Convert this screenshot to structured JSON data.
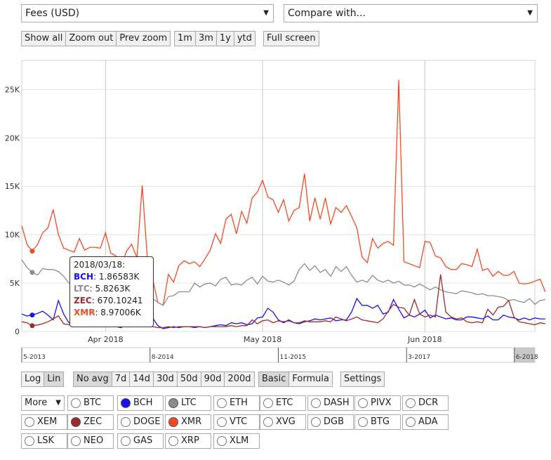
{
  "metric_select": {
    "value": "Fees (USD)"
  },
  "compare_select": {
    "value": "Compare with..."
  },
  "zoom_buttons": [
    "Show all",
    "Zoom out",
    "Prev zoom"
  ],
  "range_buttons": [
    "1m",
    "3m",
    "1y",
    "ytd"
  ],
  "fullscreen_label": "Full screen",
  "scale_buttons": [
    {
      "label": "Log",
      "active": false
    },
    {
      "label": "Lin",
      "active": true
    }
  ],
  "avg_buttons": [
    {
      "label": "No avg",
      "active": true
    },
    {
      "label": "7d",
      "active": false
    },
    {
      "label": "14d",
      "active": false
    },
    {
      "label": "30d",
      "active": false
    },
    {
      "label": "50d",
      "active": false
    },
    {
      "label": "90d",
      "active": false
    },
    {
      "label": "200d",
      "active": false
    }
  ],
  "mode_buttons": [
    {
      "label": "Basic",
      "active": true
    },
    {
      "label": "Formula",
      "active": false
    }
  ],
  "settings_label": "Settings",
  "more_label": "More",
  "coins": [
    {
      "label": "BTC",
      "checked": false,
      "color": ""
    },
    {
      "label": "BCH",
      "checked": true,
      "color": "#1a0ff2"
    },
    {
      "label": "LTC",
      "checked": true,
      "color": "#8c8c8c"
    },
    {
      "label": "ETH",
      "checked": false,
      "color": ""
    },
    {
      "label": "ETC",
      "checked": false,
      "color": ""
    },
    {
      "label": "DASH",
      "checked": false,
      "color": ""
    },
    {
      "label": "PIVX",
      "checked": false,
      "color": ""
    },
    {
      "label": "DCR",
      "checked": false,
      "color": ""
    },
    {
      "label": "XEM",
      "checked": false,
      "color": ""
    },
    {
      "label": "ZEC",
      "checked": true,
      "color": "#9e2a2a"
    },
    {
      "label": "DOGE",
      "checked": false,
      "color": ""
    },
    {
      "label": "XMR",
      "checked": true,
      "color": "#f04a24"
    },
    {
      "label": "VTC",
      "checked": false,
      "color": ""
    },
    {
      "label": "XVG",
      "checked": false,
      "color": ""
    },
    {
      "label": "DGB",
      "checked": false,
      "color": ""
    },
    {
      "label": "BTG",
      "checked": false,
      "color": ""
    },
    {
      "label": "ADA",
      "checked": false,
      "color": ""
    },
    {
      "label": "LSK",
      "checked": false,
      "color": ""
    },
    {
      "label": "NEO",
      "checked": false,
      "color": ""
    },
    {
      "label": "GAS",
      "checked": false,
      "color": ""
    },
    {
      "label": "XRP",
      "checked": false,
      "color": ""
    },
    {
      "label": "XLM",
      "checked": false,
      "color": ""
    }
  ],
  "tooltip": {
    "date": "2018/03/18:",
    "rows": [
      {
        "label": "BCH",
        "value": "1.86583K",
        "color": "#1a0ff2"
      },
      {
        "label": "LTC",
        "value": "5.8263K",
        "color": "#8c8c8c"
      },
      {
        "label": "ZEC",
        "value": "670.10241",
        "color": "#9e2a2a"
      },
      {
        "label": "XMR",
        "value": "8.97006K",
        "color": "#f04a24"
      }
    ]
  },
  "chart_data": {
    "type": "line",
    "title": "",
    "xlabel": "",
    "ylabel": "",
    "x_start": "2018-03-16",
    "x_end": "2018-06-22",
    "ylim": [
      0,
      28000
    ],
    "y_ticks": [
      {
        "value": 0,
        "label": "0"
      },
      {
        "value": 5000,
        "label": "5K"
      },
      {
        "value": 10000,
        "label": "10K"
      },
      {
        "value": 15000,
        "label": "15K"
      },
      {
        "value": 20000,
        "label": "20K"
      },
      {
        "value": 25000,
        "label": "25K"
      }
    ],
    "x_ticks": [
      {
        "date": "2018-04-01",
        "label": "Apr 2018"
      },
      {
        "date": "2018-05-01",
        "label": "May 2018"
      },
      {
        "date": "2018-06-01",
        "label": "Jun 2018"
      }
    ],
    "grid": true,
    "hover_date": "2018-03-18",
    "navigator_labels": [
      {
        "pos": 0.0,
        "label": "5-2013"
      },
      {
        "pos": 0.25,
        "label": "8-2014"
      },
      {
        "pos": 0.5,
        "label": "11-2015"
      },
      {
        "pos": 0.75,
        "label": "3-2017"
      },
      {
        "pos": 0.96,
        "label": "6-2018"
      }
    ],
    "series": [
      {
        "name": "XMR",
        "color": "#f04a24",
        "values": [
          10900,
          9000,
          8300,
          8970,
          10200,
          10700,
          12600,
          10000,
          8600,
          8400,
          8200,
          9600,
          8400,
          8700,
          8700,
          8600,
          10200,
          8100,
          7800,
          6700,
          8300,
          9000,
          7600,
          15100,
          7500,
          5400,
          3000,
          2700,
          5900,
          5100,
          6800,
          7300,
          7000,
          7200,
          6700,
          7500,
          8400,
          10100,
          9100,
          11600,
          12100,
          10100,
          12400,
          11200,
          13800,
          14400,
          15600,
          13900,
          13600,
          12300,
          13600,
          11400,
          12500,
          12800,
          16300,
          11400,
          13800,
          11600,
          13800,
          11100,
          12800,
          12300,
          13000,
          11900,
          10700,
          7700,
          7100,
          9600,
          8600,
          9100,
          9300,
          8900,
          26000,
          7200,
          7000,
          6800,
          6600,
          9300,
          9200,
          7800,
          7600,
          6700,
          6400,
          6400,
          7000,
          6900,
          6700,
          8500,
          6300,
          6500,
          5700,
          6200,
          5800,
          5800,
          6200,
          5000,
          4900,
          5000,
          5200,
          5400,
          4100
        ]
      },
      {
        "name": "LTC",
        "color": "#8c8c8c",
        "values": [
          7400,
          6600,
          6100,
          5830,
          6500,
          6400,
          6400,
          6200,
          5700,
          5000,
          5100,
          4600,
          4900,
          4600,
          4600,
          4800,
          4900,
          4400,
          4300,
          4100,
          4400,
          4600,
          4000,
          4200,
          3900,
          3400,
          3000,
          2700,
          3600,
          3700,
          4100,
          4100,
          4100,
          5000,
          4600,
          4900,
          5000,
          4700,
          5400,
          5600,
          4800,
          4900,
          4800,
          5300,
          5600,
          4900,
          5700,
          5200,
          5100,
          5300,
          5100,
          4800,
          5200,
          6400,
          7000,
          6300,
          6800,
          6100,
          6400,
          5700,
          6700,
          6200,
          6700,
          5800,
          5100,
          5300,
          5100,
          5800,
          5300,
          5100,
          5300,
          5000,
          5200,
          4800,
          4800,
          4600,
          4900,
          4600,
          4300,
          4600,
          4300,
          4100,
          4000,
          3900,
          4200,
          4100,
          4000,
          3800,
          3900,
          3700,
          3700,
          3600,
          3500,
          3200,
          3300,
          3100,
          3000,
          3400,
          2800,
          3200,
          3300
        ]
      },
      {
        "name": "BCH",
        "color": "#1a0ff2",
        "values": [
          1800,
          1600,
          1700,
          1870,
          2100,
          1700,
          1200,
          3200,
          1800,
          900,
          700,
          800,
          700,
          600,
          700,
          500,
          600,
          700,
          500,
          400,
          900,
          700,
          600,
          500,
          700,
          1400,
          600,
          300,
          400,
          500,
          400,
          500,
          500,
          400,
          500,
          400,
          500,
          600,
          700,
          600,
          900,
          800,
          900,
          700,
          800,
          1400,
          1500,
          2400,
          2000,
          1200,
          900,
          1200,
          900,
          800,
          1000,
          1100,
          1300,
          1200,
          1300,
          1400,
          1100,
          1200,
          1200,
          2000,
          3400,
          2700,
          2700,
          2400,
          2700,
          1800,
          2000,
          3300,
          2300,
          1400,
          1700,
          1500,
          1800,
          2200,
          1400,
          1700,
          1500,
          1300,
          1400,
          1200,
          1200,
          1500,
          1500,
          1400,
          1300,
          1600,
          1200,
          1200,
          1700,
          1500,
          1400,
          1200,
          1400,
          1200,
          1400,
          1300,
          1300
        ]
      },
      {
        "name": "ZEC",
        "color": "#9e2a2a",
        "values": [
          1000,
          900,
          600,
          670,
          800,
          1000,
          1300,
          1600,
          800,
          700,
          600,
          600,
          500,
          600,
          500,
          500,
          500,
          600,
          600,
          500,
          600,
          500,
          500,
          1600,
          500,
          500,
          400,
          400,
          500,
          400,
          500,
          500,
          500,
          500,
          500,
          400,
          500,
          500,
          500,
          500,
          600,
          500,
          600,
          600,
          1200,
          800,
          1100,
          1200,
          900,
          1100,
          1000,
          1100,
          900,
          900,
          1100,
          1000,
          1000,
          1000,
          1100,
          1000,
          1500,
          1300,
          1100,
          1300,
          1500,
          1200,
          1100,
          1000,
          900,
          1300,
          2100,
          2800,
          2500,
          2400,
          1700,
          3300,
          1800,
          1500,
          1700,
          1500,
          5900,
          2000,
          1500,
          1300,
          1400,
          1000,
          900,
          1000,
          900,
          2300,
          1700,
          2500,
          2600,
          3200,
          1500,
          1000,
          900,
          800,
          700,
          900,
          800
        ]
      }
    ]
  }
}
